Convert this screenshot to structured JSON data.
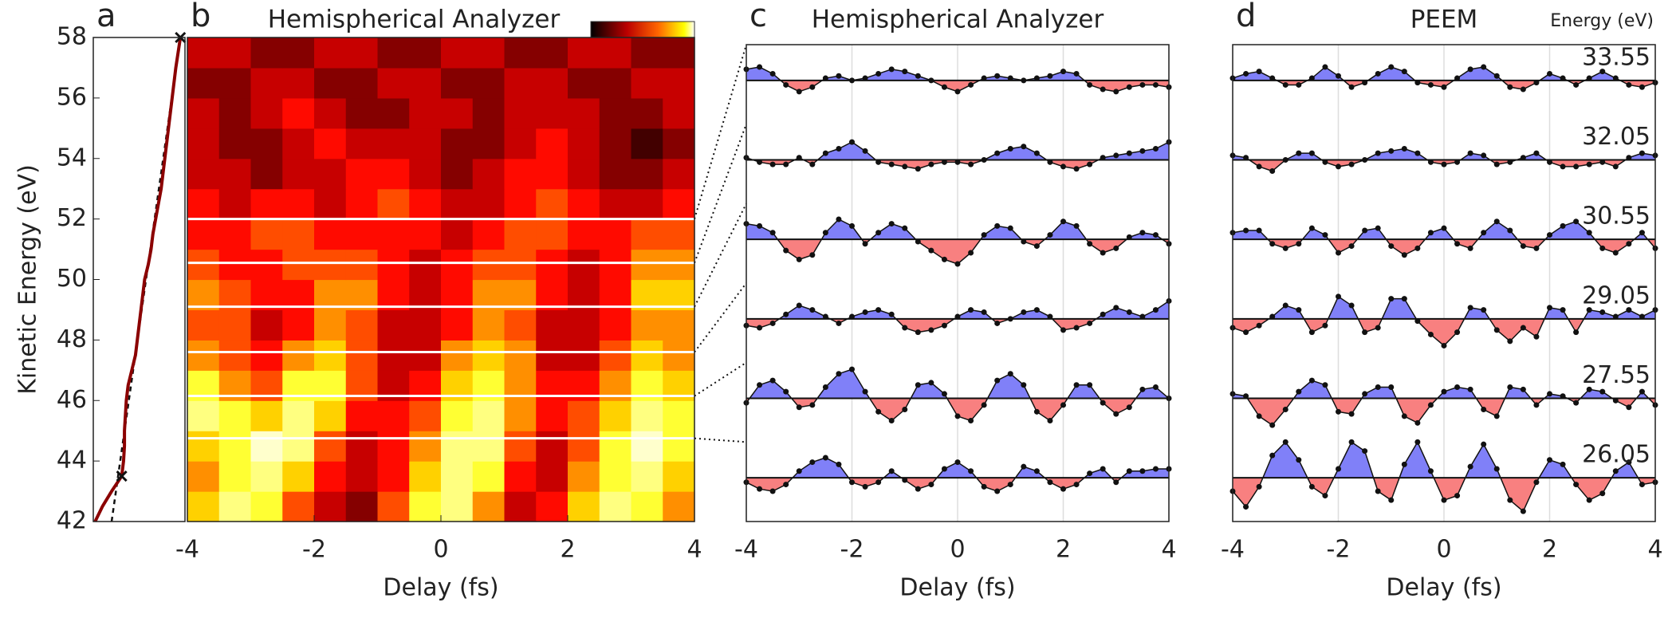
{
  "chart_data": [
    {
      "type": "line",
      "panel": "a",
      "ylabel": "Kinetic Energy (eV)",
      "ylim": [
        42,
        58
      ],
      "yticks": [
        42,
        44,
        46,
        48,
        50,
        52,
        54,
        56,
        58
      ],
      "xlim": [
        0,
        1
      ],
      "color": "#8b0000",
      "profile": {
        "energy": [
          42,
          42.5,
          43,
          43.5,
          44,
          44.5,
          45,
          45.5,
          46,
          46.5,
          47,
          47.5,
          48,
          48.5,
          49,
          49.5,
          50,
          50.5,
          51,
          51.5,
          52,
          53,
          54,
          55,
          56,
          57,
          58
        ],
        "intensity": [
          0.02,
          0.1,
          0.2,
          0.31,
          0.33,
          0.34,
          0.34,
          0.35,
          0.36,
          0.38,
          0.42,
          0.46,
          0.48,
          0.5,
          0.52,
          0.54,
          0.56,
          0.6,
          0.63,
          0.65,
          0.68,
          0.74,
          0.78,
          0.82,
          0.86,
          0.9,
          0.95
        ]
      },
      "fit": {
        "energy": [
          42,
          58
        ],
        "intensity": [
          0.2,
          0.95
        ]
      },
      "markers": {
        "energy": [
          43.5,
          58
        ],
        "intensity": [
          0.31,
          0.95
        ]
      }
    },
    {
      "type": "heatmap",
      "panel": "b",
      "title": "Hemispherical Analyzer",
      "xlabel": "Delay (fs)",
      "xlim": [
        -4,
        4
      ],
      "xticks": [
        -4,
        -2,
        0,
        2,
        4
      ],
      "ylim": [
        42,
        58
      ],
      "zlim": [
        0,
        1
      ],
      "colormap": "hot",
      "x": [
        -3.75,
        -3.25,
        -2.75,
        -2.25,
        -1.75,
        -1.25,
        -0.75,
        -0.25,
        0.25,
        0.75,
        1.25,
        1.75,
        2.25,
        2.75,
        3.25,
        3.75
      ],
      "y": [
        42.5,
        43.5,
        44.5,
        45.5,
        46.5,
        47.5,
        48.5,
        49.5,
        50.5,
        51.5,
        52.5,
        53.5,
        54.5,
        55.5,
        56.5,
        57.5
      ],
      "z": [
        [
          0.7,
          0.9,
          0.8,
          0.5,
          0.3,
          0.2,
          0.5,
          0.8,
          0.9,
          0.6,
          0.3,
          0.4,
          0.7,
          0.9,
          0.8,
          0.6
        ],
        [
          0.6,
          0.8,
          0.9,
          0.7,
          0.4,
          0.3,
          0.4,
          0.7,
          0.9,
          0.8,
          0.4,
          0.3,
          0.6,
          0.8,
          0.9,
          0.7
        ],
        [
          0.7,
          0.8,
          1.0,
          0.9,
          0.5,
          0.3,
          0.4,
          0.6,
          0.9,
          0.9,
          0.5,
          0.3,
          0.5,
          0.8,
          1.0,
          0.8
        ],
        [
          0.9,
          0.8,
          0.7,
          0.9,
          0.7,
          0.4,
          0.4,
          0.5,
          0.8,
          0.9,
          0.6,
          0.4,
          0.5,
          0.7,
          0.9,
          0.8
        ],
        [
          0.8,
          0.6,
          0.5,
          0.8,
          0.8,
          0.5,
          0.3,
          0.4,
          0.7,
          0.8,
          0.6,
          0.4,
          0.4,
          0.6,
          0.8,
          0.7
        ],
        [
          0.6,
          0.5,
          0.4,
          0.6,
          0.7,
          0.5,
          0.3,
          0.3,
          0.6,
          0.7,
          0.6,
          0.3,
          0.3,
          0.5,
          0.7,
          0.6
        ],
        [
          0.5,
          0.5,
          0.3,
          0.4,
          0.6,
          0.5,
          0.3,
          0.3,
          0.4,
          0.6,
          0.5,
          0.3,
          0.3,
          0.4,
          0.6,
          0.6
        ],
        [
          0.6,
          0.5,
          0.4,
          0.4,
          0.6,
          0.6,
          0.4,
          0.3,
          0.4,
          0.6,
          0.6,
          0.4,
          0.3,
          0.4,
          0.7,
          0.7
        ],
        [
          0.5,
          0.4,
          0.4,
          0.5,
          0.5,
          0.5,
          0.4,
          0.3,
          0.4,
          0.5,
          0.5,
          0.4,
          0.3,
          0.4,
          0.6,
          0.6
        ],
        [
          0.4,
          0.4,
          0.5,
          0.5,
          0.4,
          0.4,
          0.4,
          0.4,
          0.3,
          0.4,
          0.5,
          0.5,
          0.4,
          0.4,
          0.5,
          0.5
        ],
        [
          0.4,
          0.3,
          0.4,
          0.4,
          0.3,
          0.4,
          0.5,
          0.4,
          0.3,
          0.3,
          0.4,
          0.5,
          0.4,
          0.3,
          0.3,
          0.4
        ],
        [
          0.3,
          0.3,
          0.2,
          0.3,
          0.3,
          0.4,
          0.4,
          0.3,
          0.2,
          0.3,
          0.4,
          0.4,
          0.3,
          0.2,
          0.2,
          0.3
        ],
        [
          0.3,
          0.2,
          0.2,
          0.3,
          0.4,
          0.3,
          0.3,
          0.3,
          0.2,
          0.2,
          0.3,
          0.4,
          0.3,
          0.2,
          0.1,
          0.2
        ],
        [
          0.3,
          0.2,
          0.3,
          0.4,
          0.3,
          0.2,
          0.2,
          0.3,
          0.3,
          0.2,
          0.3,
          0.3,
          0.3,
          0.2,
          0.2,
          0.3
        ],
        [
          0.2,
          0.2,
          0.3,
          0.3,
          0.2,
          0.2,
          0.3,
          0.3,
          0.2,
          0.2,
          0.3,
          0.3,
          0.2,
          0.2,
          0.3,
          0.3
        ],
        [
          0.3,
          0.3,
          0.2,
          0.2,
          0.3,
          0.3,
          0.2,
          0.2,
          0.3,
          0.3,
          0.2,
          0.2,
          0.3,
          0.3,
          0.2,
          0.2
        ]
      ],
      "lines": [
        52.0,
        50.55,
        49.1,
        47.6,
        46.15,
        44.75
      ]
    },
    {
      "type": "area",
      "panel": "c",
      "title": "Hemispherical Analyzer",
      "xlabel": "Delay (fs)",
      "xlim": [
        -4,
        4
      ],
      "xticks": [
        -4,
        -2,
        0,
        2,
        4
      ],
      "grid": true,
      "colors": {
        "positive": "#8080f8",
        "negative": "#f88080"
      },
      "x": [
        -4,
        -3.75,
        -3.5,
        -3.25,
        -3,
        -2.75,
        -2.5,
        -2.25,
        -2,
        -1.75,
        -1.5,
        -1.25,
        -1,
        -0.75,
        -0.5,
        -0.25,
        0,
        0.25,
        0.5,
        0.75,
        1,
        1.25,
        1.5,
        1.75,
        2,
        2.25,
        2.5,
        2.75,
        3,
        3.25,
        3.5,
        3.75,
        4
      ],
      "series": [
        {
          "values": [
            0.5,
            0.6,
            0.3,
            -0.2,
            -0.5,
            -0.3,
            0.1,
            0.2,
            0.0,
            0.1,
            0.3,
            0.5,
            0.4,
            0.2,
            0.0,
            -0.3,
            -0.5,
            -0.2,
            0.1,
            0.2,
            0.1,
            0.0,
            0.1,
            0.2,
            0.4,
            0.3,
            -0.2,
            -0.4,
            -0.5,
            -0.3,
            -0.2,
            -0.2,
            -0.3
          ]
        },
        {
          "values": [
            0.1,
            -0.1,
            -0.2,
            -0.2,
            0.1,
            -0.2,
            0.3,
            0.5,
            0.8,
            0.4,
            -0.1,
            -0.2,
            -0.3,
            -0.4,
            -0.2,
            -0.1,
            -0.1,
            -0.2,
            0.0,
            0.3,
            0.5,
            0.6,
            0.3,
            -0.1,
            -0.3,
            -0.4,
            -0.2,
            0.1,
            0.2,
            0.3,
            0.4,
            0.5,
            0.8
          ]
        },
        {
          "values": [
            0.7,
            0.6,
            0.3,
            -0.5,
            -0.9,
            -0.7,
            0.3,
            0.9,
            0.6,
            -0.2,
            0.3,
            0.7,
            0.5,
            -0.1,
            -0.5,
            -0.9,
            -1.1,
            -0.6,
            0.2,
            0.6,
            0.5,
            -0.1,
            -0.3,
            0.2,
            0.8,
            0.6,
            -0.2,
            -0.6,
            -0.4,
            0.1,
            0.3,
            0.2,
            -0.2
          ]
        },
        {
          "values": [
            -0.3,
            -0.4,
            -0.2,
            0.2,
            0.6,
            0.4,
            0.1,
            -0.2,
            0.1,
            0.3,
            0.4,
            0.2,
            -0.4,
            -0.6,
            -0.5,
            -0.3,
            0.1,
            0.4,
            0.3,
            -0.2,
            0.0,
            0.3,
            0.4,
            0.1,
            -0.5,
            -0.4,
            -0.2,
            0.2,
            0.5,
            0.3,
            0.1,
            0.4,
            0.8
          ]
        },
        {
          "values": [
            -0.2,
            0.6,
            0.8,
            0.3,
            -0.4,
            -0.3,
            0.5,
            1.1,
            1.3,
            0.3,
            -0.6,
            -1.0,
            -0.5,
            0.6,
            0.7,
            0.2,
            -0.8,
            -1.0,
            -0.3,
            0.8,
            1.1,
            0.6,
            -0.6,
            -1.0,
            -0.3,
            0.6,
            0.6,
            -0.2,
            -0.7,
            -0.4,
            0.4,
            0.5,
            0.0
          ]
        },
        {
          "values": [
            -0.2,
            -0.5,
            -0.6,
            -0.3,
            0.3,
            0.7,
            0.9,
            0.6,
            -0.2,
            -0.4,
            -0.2,
            0.3,
            -0.1,
            -0.5,
            -0.3,
            0.4,
            0.7,
            0.3,
            -0.4,
            -0.6,
            -0.3,
            0.5,
            0.3,
            -0.2,
            -0.5,
            -0.3,
            0.2,
            0.4,
            -0.2,
            0.3,
            0.3,
            0.4,
            0.4
          ]
        }
      ]
    },
    {
      "type": "area",
      "panel": "d",
      "title": "PEEM",
      "annotation": "Energy (eV)",
      "xlabel": "Delay (fs)",
      "xlim": [
        -4,
        4
      ],
      "xticks": [
        -4,
        -2,
        0,
        2,
        4
      ],
      "grid": true,
      "colors": {
        "positive": "#8080f8",
        "negative": "#f88080"
      },
      "x": [
        -4,
        -3.75,
        -3.5,
        -3.25,
        -3,
        -2.75,
        -2.5,
        -2.25,
        -2,
        -1.75,
        -1.5,
        -1.25,
        -1,
        -0.75,
        -0.5,
        -0.25,
        0,
        0.25,
        0.5,
        0.75,
        1,
        1.25,
        1.5,
        1.75,
        2,
        2.25,
        2.5,
        2.75,
        3,
        3.25,
        3.5,
        3.75,
        4
      ],
      "series": [
        {
          "name": "33.55",
          "values": [
            0.1,
            0.3,
            0.4,
            0.1,
            -0.2,
            -0.2,
            0.1,
            0.6,
            0.2,
            -0.3,
            -0.1,
            0.3,
            0.6,
            0.4,
            -0.1,
            -0.2,
            -0.3,
            0.1,
            0.5,
            0.6,
            0.2,
            -0.3,
            -0.4,
            -0.1,
            0.3,
            0.1,
            -0.2,
            0.1,
            0.4,
            0.1,
            -0.2,
            -0.3,
            -0.1
          ]
        },
        {
          "name": "32.05",
          "values": [
            0.2,
            0.1,
            -0.3,
            -0.5,
            0.0,
            0.3,
            0.3,
            -0.1,
            -0.3,
            -0.2,
            0.0,
            0.3,
            0.4,
            0.5,
            0.3,
            -0.1,
            -0.2,
            -0.1,
            0.3,
            0.2,
            -0.2,
            -0.1,
            0.1,
            0.3,
            -0.1,
            -0.3,
            -0.3,
            -0.2,
            -0.1,
            -0.3,
            0.1,
            0.3,
            0.2
          ]
        },
        {
          "name": "30.55",
          "values": [
            0.3,
            0.4,
            0.4,
            -0.2,
            -0.4,
            -0.2,
            0.5,
            0.2,
            -0.6,
            -0.3,
            0.4,
            0.5,
            -0.3,
            -0.7,
            -0.4,
            0.3,
            0.5,
            -0.2,
            -0.4,
            0.3,
            0.8,
            0.4,
            -0.3,
            -0.4,
            0.2,
            0.6,
            0.8,
            0.3,
            -0.4,
            -0.6,
            -0.2,
            0.3,
            -0.4
          ]
        },
        {
          "name": "29.05",
          "values": [
            -0.4,
            -0.6,
            -0.3,
            0.1,
            0.6,
            0.4,
            -0.6,
            -0.3,
            1.0,
            0.6,
            -0.6,
            -0.4,
            0.9,
            0.9,
            -0.1,
            -0.7,
            -1.2,
            -0.6,
            0.5,
            0.4,
            -0.5,
            -1.0,
            -0.4,
            -0.8,
            0.5,
            0.4,
            -0.6,
            0.4,
            0.3,
            0.1,
            0.4,
            0.1,
            0.4
          ]
        },
        {
          "name": "27.55",
          "values": [
            0.2,
            0.1,
            -0.8,
            -1.2,
            -0.5,
            0.3,
            0.8,
            0.6,
            -0.6,
            -0.7,
            0.2,
            0.5,
            0.5,
            -0.8,
            -1.1,
            -0.3,
            0.3,
            0.5,
            0.4,
            -0.5,
            -0.8,
            0.5,
            0.4,
            -0.3,
            0.2,
            0.1,
            -0.2,
            0.4,
            0.3,
            -0.1,
            -0.4,
            0.3,
            -0.3
          ]
        },
        {
          "name": "26.05",
          "values": [
            -0.6,
            -1.3,
            -0.4,
            1.0,
            1.6,
            0.8,
            -0.4,
            -0.8,
            0.4,
            1.6,
            1.2,
            -0.6,
            -1.0,
            0.6,
            1.6,
            0.3,
            -1.0,
            -0.8,
            0.5,
            1.5,
            0.4,
            -1.0,
            -1.5,
            -0.2,
            0.8,
            0.6,
            -0.3,
            -1.0,
            -0.7,
            0.3,
            0.7,
            -0.3,
            -0.2
          ]
        }
      ]
    }
  ]
}
